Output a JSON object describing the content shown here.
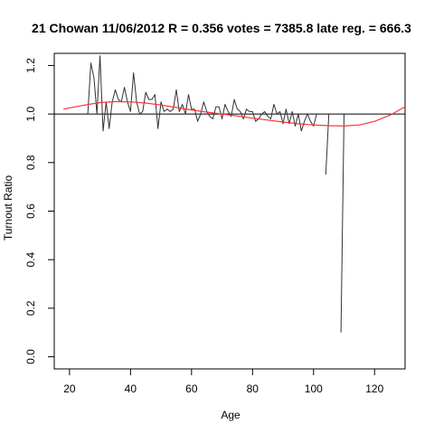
{
  "chart_data": {
    "type": "line",
    "title": "21 Chowan 11/06/2012 R = 0.356 votes = 7385.8 late reg. = 666.3",
    "xlabel": "Age",
    "ylabel": "Turnout Ratio",
    "xlim": [
      15,
      130
    ],
    "ylim": [
      -0.05,
      1.25
    ],
    "xticks": [
      20,
      40,
      60,
      80,
      100,
      120
    ],
    "yticks": [
      0.0,
      0.2,
      0.4,
      0.6,
      0.8,
      1.0,
      1.2
    ],
    "ytick_labels": [
      "0.0",
      "0.2",
      "0.4",
      "0.6",
      "0.8",
      "1.0",
      "1.2"
    ],
    "reference_line": {
      "y": 1.0,
      "color": "#000000"
    },
    "colors": {
      "observed": "#333333",
      "smooth": "#ff3333",
      "axes": "#000000"
    },
    "series": [
      {
        "kind": "observed",
        "color": "#333333",
        "x": [
          26,
          27,
          28,
          29,
          30,
          31,
          32,
          33,
          34,
          35,
          36,
          37,
          38,
          39,
          40,
          41,
          42,
          43,
          44,
          45,
          46,
          47,
          48,
          49,
          50,
          51,
          52,
          53,
          54,
          55,
          56,
          57,
          58,
          59,
          60,
          61,
          62,
          63,
          64,
          65,
          66,
          67,
          68,
          69,
          70,
          71,
          72,
          73,
          74,
          75,
          76,
          77,
          78,
          79,
          80,
          81,
          82,
          83,
          84,
          85,
          86,
          87,
          88,
          89,
          90,
          91,
          92,
          93,
          94,
          95,
          96,
          97,
          98,
          99,
          100,
          101,
          102,
          103,
          104,
          105,
          106,
          107,
          108,
          109,
          110
        ],
        "y": [
          1.0,
          1.21,
          1.15,
          1.0,
          1.24,
          0.93,
          1.05,
          0.94,
          1.05,
          1.1,
          1.06,
          1.05,
          1.11,
          1.05,
          1.01,
          1.17,
          1.05,
          1.0,
          1.01,
          1.09,
          1.06,
          1.06,
          1.08,
          0.94,
          1.05,
          1.01,
          1.02,
          1.01,
          1.02,
          1.1,
          1.01,
          1.04,
          1.0,
          1.08,
          1.02,
          1.02,
          0.97,
          1.0,
          1.05,
          1.01,
          0.99,
          0.98,
          1.03,
          1.03,
          0.98,
          1.04,
          1.01,
          0.99,
          1.06,
          1.02,
          1.01,
          0.98,
          1.02,
          1.01,
          1.01,
          0.97,
          0.98,
          1.0,
          1.01,
          0.99,
          0.98,
          1.04,
          1.0,
          1.01,
          0.96,
          1.02,
          0.96,
          1.01,
          0.95,
          1.0,
          0.93,
          0.97,
          1.0,
          0.97,
          0.95,
          1.0,
          null,
          null,
          0.75,
          1.0,
          null,
          null,
          null,
          0.1,
          1.0
        ]
      },
      {
        "kind": "smooth",
        "color": "#ff3333",
        "x": [
          18,
          25,
          30,
          35,
          40,
          45,
          50,
          55,
          60,
          65,
          70,
          75,
          80,
          85,
          90,
          95,
          100,
          105,
          110,
          115,
          120,
          125,
          130
        ],
        "y": [
          1.02,
          1.037,
          1.047,
          1.051,
          1.05,
          1.045,
          1.037,
          1.027,
          1.017,
          1.008,
          1.0,
          0.992,
          0.983,
          0.975,
          0.967,
          0.96,
          0.955,
          0.952,
          0.951,
          0.955,
          0.97,
          0.995,
          1.03
        ]
      }
    ]
  }
}
